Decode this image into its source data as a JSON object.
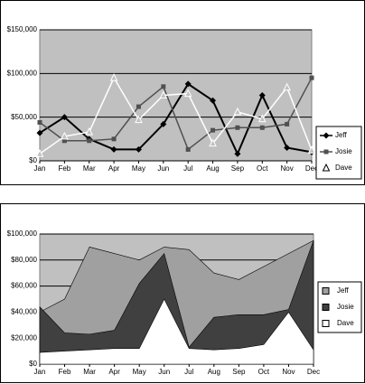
{
  "chart_data": [
    {
      "type": "line",
      "categories": [
        "Jan",
        "Feb",
        "Mar",
        "Apr",
        "May",
        "Jun",
        "Jul",
        "Aug",
        "Sep",
        "Oct",
        "Nov",
        "Dec"
      ],
      "series": [
        {
          "name": "Jeff",
          "color": "#000000",
          "marker": "diamond",
          "values": [
            32000,
            50000,
            25000,
            13000,
            13000,
            42000,
            88000,
            69000,
            8000,
            75000,
            15000,
            10000
          ]
        },
        {
          "name": "Josie",
          "color": "#505050",
          "marker": "square",
          "values": [
            44000,
            23000,
            23000,
            25000,
            62000,
            85000,
            13000,
            35000,
            38000,
            38000,
            42000,
            95000
          ]
        },
        {
          "name": "Dave",
          "color": "#ffffff",
          "marker": "triangle",
          "values": [
            8000,
            28000,
            33000,
            95000,
            47000,
            75000,
            77000,
            20000,
            56000,
            48000,
            84000,
            12000
          ]
        }
      ],
      "ylim": [
        0,
        150000
      ],
      "yticks": [
        {
          "value": 0,
          "label": "$0"
        },
        {
          "value": 50000,
          "label": "$50,000"
        },
        {
          "value": 100000,
          "label": "$100,000"
        },
        {
          "value": 150000,
          "label": "$150,000"
        }
      ],
      "grid": true
    },
    {
      "type": "area",
      "categories": [
        "Jan",
        "Feb",
        "Mar",
        "Apr",
        "May",
        "Jun",
        "Jul",
        "Aug",
        "Sep",
        "Oct",
        "Nov",
        "Dec"
      ],
      "series": [
        {
          "name": "Jeff",
          "color": "#a0a0a0",
          "values": [
            40000,
            50000,
            90000,
            85000,
            80000,
            90000,
            88000,
            70000,
            65000,
            75000,
            85000,
            95000
          ]
        },
        {
          "name": "Josie",
          "color": "#404040",
          "values": [
            44000,
            24000,
            23000,
            26000,
            62000,
            85000,
            13000,
            36000,
            38000,
            38000,
            42000,
            95000
          ]
        },
        {
          "name": "Dave",
          "color": "#ffffff",
          "values": [
            9000,
            10000,
            11000,
            12000,
            12000,
            50000,
            12000,
            11000,
            12000,
            15000,
            40000,
            11000
          ]
        }
      ],
      "ylim": [
        0,
        100000
      ],
      "yticks": [
        {
          "value": 0,
          "label": "$0"
        },
        {
          "value": 20000,
          "label": "$20,000"
        },
        {
          "value": 40000,
          "label": "$40,000"
        },
        {
          "value": 60000,
          "label": "$60,000"
        },
        {
          "value": 80000,
          "label": "$80,000"
        },
        {
          "value": 100000,
          "label": "$100,000"
        }
      ],
      "grid": true
    }
  ]
}
